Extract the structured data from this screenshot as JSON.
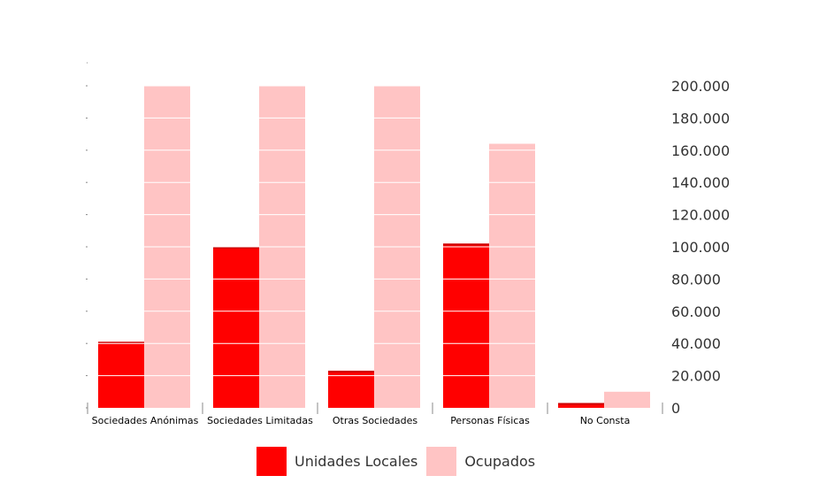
{
  "chart_data": {
    "type": "bar",
    "categories": [
      "Sociedades Anónimas",
      "Sociedades Limitadas",
      "Otras Sociedades",
      "Personas Físicas",
      "No Consta"
    ],
    "series": [
      {
        "name": "Unidades Locales",
        "color": "#ff0000",
        "values": [
          41000,
          100000,
          23000,
          102000,
          3000
        ]
      },
      {
        "name": "Ocupados",
        "color": "#ffc4c4",
        "values": [
          200000,
          200000,
          200000,
          164000,
          10000
        ]
      }
    ],
    "yticks": [
      "0",
      "20.000",
      "40.000",
      "60.000",
      "80.000",
      "100.000",
      "120.000",
      "140.000",
      "160.000",
      "180.000",
      "200.000"
    ],
    "ylim": [
      0,
      200000
    ],
    "grid": true,
    "yaxis_position": "right",
    "legend_position": "bottom"
  }
}
